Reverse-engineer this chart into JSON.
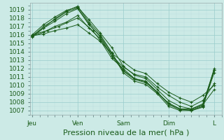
{
  "background_color": "#cceae6",
  "plot_bg_color": "#cceae6",
  "grid_color_major": "#99cccc",
  "grid_color_minor": "#bbdddd",
  "line_color": "#1a5c1a",
  "ylabel_ticks": [
    1007,
    1008,
    1009,
    1010,
    1011,
    1012,
    1013,
    1014,
    1015,
    1016,
    1017,
    1018,
    1019
  ],
  "ylim": [
    1006.5,
    1019.8
  ],
  "xlabel": "Pression niveau de la mer( hPa )",
  "xtick_labels": [
    "Jeu",
    "Ven",
    "Sam",
    "Dim",
    "L"
  ],
  "xtick_positions": [
    0,
    24,
    48,
    72,
    96
  ],
  "xlim": [
    -1,
    100
  ],
  "lines": [
    [
      0,
      1016.0,
      6,
      1017.2,
      12,
      1018.1,
      18,
      1018.9,
      24,
      1019.3,
      30,
      1017.8,
      36,
      1016.2,
      42,
      1014.5,
      48,
      1012.3,
      54,
      1011.2,
      60,
      1010.8,
      66,
      1009.5,
      72,
      1008.2,
      78,
      1007.5,
      84,
      1007.2,
      90,
      1007.8,
      96,
      1011.8
    ],
    [
      0,
      1015.9,
      6,
      1016.8,
      12,
      1017.6,
      18,
      1018.5,
      24,
      1019.1,
      30,
      1017.2,
      36,
      1015.8,
      42,
      1013.8,
      48,
      1011.8,
      54,
      1010.8,
      60,
      1010.4,
      66,
      1009.1,
      72,
      1007.9,
      78,
      1007.2,
      84,
      1007.0,
      90,
      1007.5,
      96,
      1011.5
    ],
    [
      0,
      1015.8,
      6,
      1016.3,
      12,
      1017.0,
      18,
      1017.5,
      24,
      1018.3,
      30,
      1016.8,
      36,
      1015.5,
      42,
      1013.5,
      48,
      1012.2,
      54,
      1011.3,
      60,
      1011.0,
      66,
      1009.8,
      72,
      1008.8,
      78,
      1008.0,
      84,
      1007.5,
      90,
      1008.2,
      96,
      1010.2
    ],
    [
      0,
      1015.9,
      6,
      1016.1,
      12,
      1016.5,
      18,
      1016.8,
      24,
      1017.2,
      30,
      1016.2,
      36,
      1015.2,
      42,
      1013.8,
      48,
      1012.8,
      54,
      1011.8,
      60,
      1011.4,
      66,
      1010.2,
      72,
      1009.2,
      78,
      1008.5,
      84,
      1008.0,
      90,
      1008.8,
      96,
      1010.0
    ],
    [
      0,
      1016.0,
      8,
      1016.5,
      14,
      1017.0,
      24,
      1018.0,
      32,
      1016.5,
      36,
      1015.3,
      42,
      1013.2,
      48,
      1012.0,
      54,
      1010.8,
      60,
      1010.5,
      66,
      1009.2,
      72,
      1007.8,
      78,
      1007.2,
      84,
      1007.2,
      90,
      1007.7,
      96,
      1009.5
    ],
    [
      0,
      1015.7,
      6,
      1016.8,
      12,
      1017.9,
      18,
      1018.8,
      24,
      1019.4,
      30,
      1017.5,
      36,
      1016.0,
      42,
      1013.9,
      48,
      1011.5,
      54,
      1010.5,
      60,
      1010.1,
      66,
      1009.0,
      72,
      1007.5,
      78,
      1007.0,
      84,
      1007.0,
      90,
      1007.4,
      96,
      1011.8
    ],
    [
      0,
      1015.8,
      6,
      1017.0,
      12,
      1017.8,
      18,
      1018.7,
      24,
      1019.2,
      30,
      1017.3,
      36,
      1015.7,
      42,
      1013.5,
      48,
      1011.7,
      54,
      1010.7,
      60,
      1010.3,
      66,
      1009.2,
      72,
      1007.7,
      78,
      1007.1,
      84,
      1007.1,
      90,
      1007.6,
      96,
      1012.0
    ]
  ],
  "marker": "+",
  "markersize": 2.5,
  "linewidth": 0.7,
  "tick_fontsize": 6.5,
  "xlabel_fontsize": 8
}
